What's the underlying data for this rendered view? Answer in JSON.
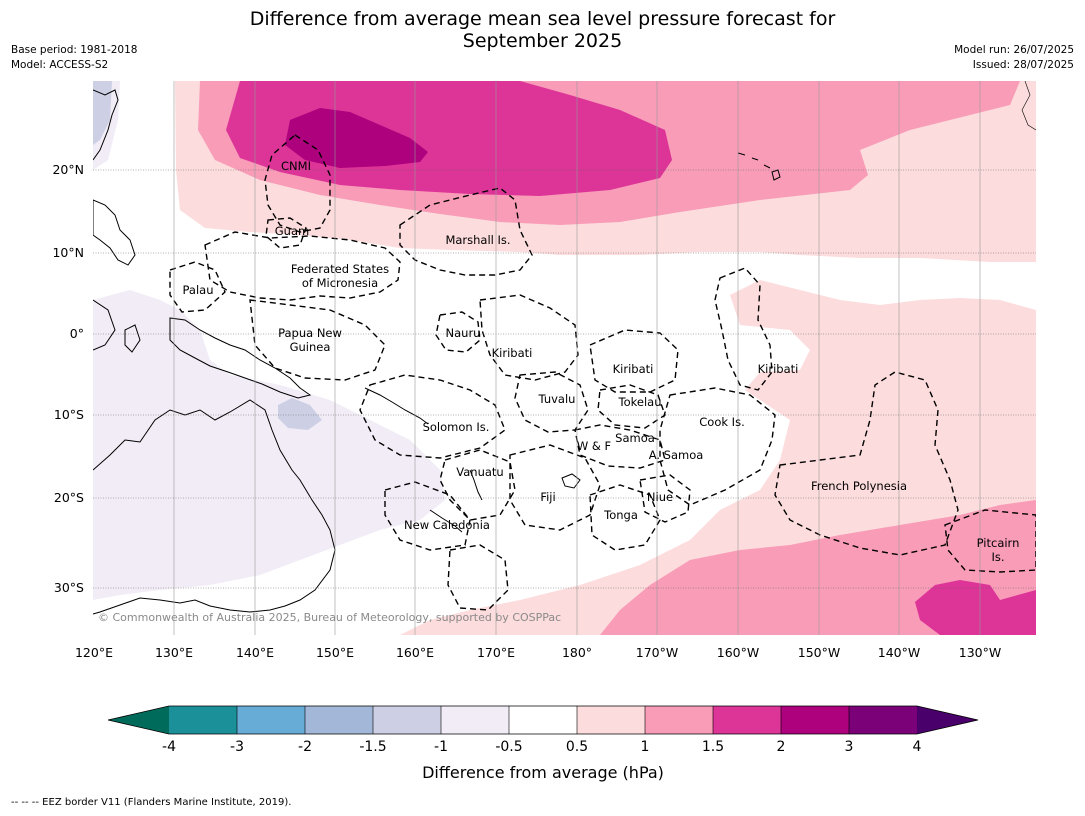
{
  "title_line1": "Difference from average mean sea level pressure forecast for",
  "title_line2": "September 2025",
  "base_period": "Base period: 1981-2018",
  "model": "Model: ACCESS-S2",
  "model_run": "Model run: 26/07/2025",
  "issued": "Issued: 28/07/2025",
  "copyright": "© Commonwealth of Australia 2025, Bureau of Meteorology, supported by COSPPac",
  "footnote": "--  --  -- EEZ border V11 (Flanders Marine Institute, 2019).",
  "map": {
    "lon_labels": [
      "120°E",
      "130°E",
      "140°E",
      "150°E",
      "160°E",
      "170°E",
      "180°",
      "170°W",
      "160°W",
      "150°W",
      "140°W",
      "130°W"
    ],
    "lat_labels": [
      "20°N",
      "10°N",
      "0°",
      "10°S",
      "20°S",
      "30°S"
    ],
    "region_labels": {
      "cnmi": "CNMI",
      "guam": "Guam",
      "marshall": "Marshall Is.",
      "fsm1": "Federated States",
      "fsm2": "of Micronesia",
      "palau": "Palau",
      "png1": "Papua New",
      "png2": "Guinea",
      "nauru": "Nauru",
      "kiribati_w": "Kiribati",
      "kiribati_c": "Kiribati",
      "kiribati_e": "Kiribati",
      "tuvalu": "Tuvalu",
      "tokelau": "Tokelau",
      "solomon": "Solomon Is.",
      "cook": "Cook Is.",
      "samoa": "Samoa",
      "wf": "W & F",
      "asamoa": "A. Samoa",
      "vanuatu": "Vanuatu",
      "fiji": "Fiji",
      "niue": "Niue",
      "tonga": "Tonga",
      "french_polynesia": "French Polynesia",
      "new_caledonia": "New Caledonia",
      "pitcairn1": "Pitcairn",
      "pitcairn2": "Is."
    }
  },
  "colorbar": {
    "title": "Difference from average (hPa)",
    "ticks": [
      "-4",
      "-3",
      "-2",
      "-1.5",
      "-1",
      "-0.5",
      "0.5",
      "1",
      "1.5",
      "2",
      "3",
      "4"
    ],
    "colors": {
      "below_min": "#006a5b",
      "b1": "#1b9099",
      "b2": "#67acd6",
      "b3": "#a3b8d8",
      "b4": "#cdd0e5",
      "b5": "#f2ecf6",
      "b6": "#ffffff",
      "b7": "#fcdcdc",
      "b8": "#f89cb8",
      "b9": "#dd3498",
      "b10": "#ad017d",
      "b11": "#7a0178",
      "above_max": "#49006a"
    }
  }
}
